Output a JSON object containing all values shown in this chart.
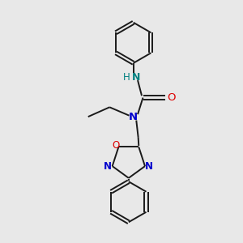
{
  "background_color": "#e8e8e8",
  "bond_color": "#1a1a1a",
  "N_color": "#0000cc",
  "NH_color": "#008080",
  "O_color": "#dd0000",
  "figsize": [
    3.0,
    3.0
  ],
  "dpi": 100,
  "lw": 1.4,
  "fs": 8.5,
  "xlim": [
    0,
    10
  ],
  "ylim": [
    0,
    10
  ]
}
